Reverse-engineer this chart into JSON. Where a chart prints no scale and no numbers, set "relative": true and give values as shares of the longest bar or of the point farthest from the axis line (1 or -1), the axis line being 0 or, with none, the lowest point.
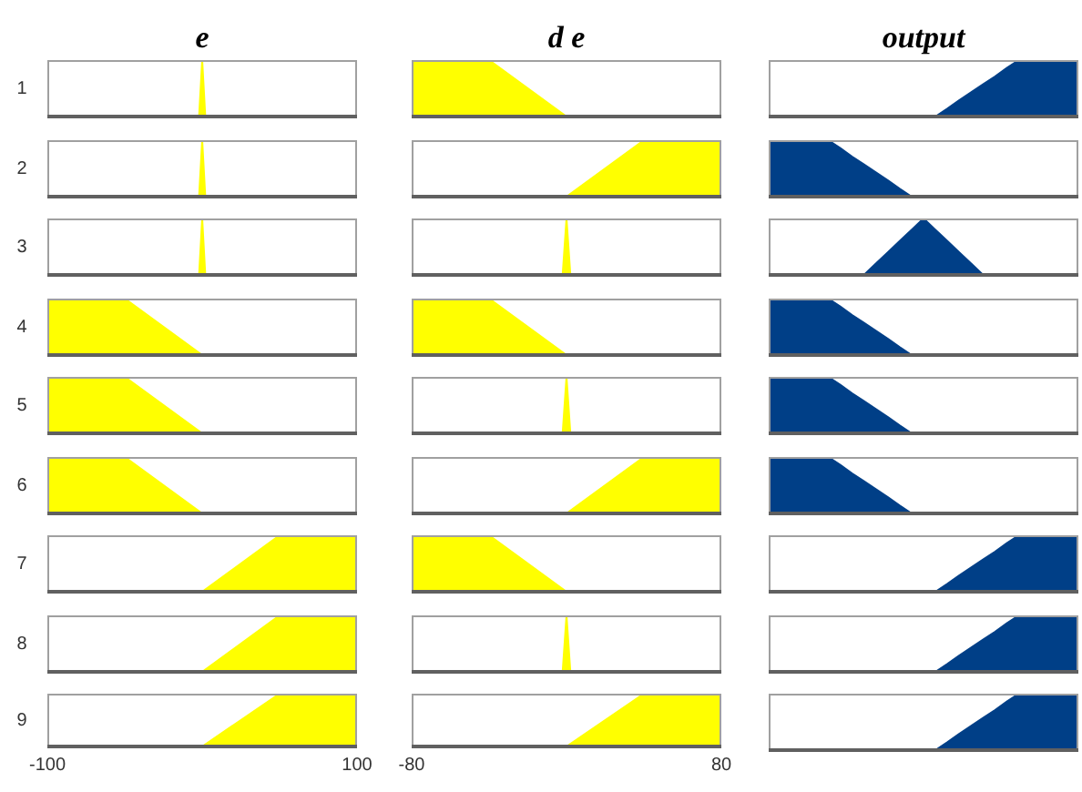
{
  "chart_data": [
    {
      "type": "area",
      "title": "e",
      "ylabel": "1",
      "x": [
        -100,
        -2,
        0,
        2,
        100
      ],
      "values": [
        0,
        0,
        1,
        0,
        0
      ],
      "color": "#ffff00",
      "relative": true,
      "xlim": [
        -100,
        100
      ],
      "tick_labels": false
    },
    {
      "type": "area",
      "title": "d e",
      "x": [
        -80,
        -40,
        0,
        80
      ],
      "values": [
        1,
        1,
        0,
        0
      ],
      "color": "#ffff00",
      "relative": true,
      "xlim": [
        -80,
        80
      ],
      "tick_labels": false
    },
    {
      "type": "area",
      "title": "output",
      "categories": [
        null,
        null,
        null,
        null,
        null,
        null,
        null,
        null,
        null,
        null,
        null,
        null,
        null,
        null,
        null,
        null,
        null,
        null,
        null,
        null,
        null,
        null,
        null,
        null,
        null,
        null,
        null
      ],
      "values": [
        0,
        0,
        0,
        0,
        0,
        0,
        0,
        0,
        0,
        0,
        0,
        0,
        0,
        0,
        0,
        0.14,
        0.29,
        0.43,
        0.57,
        0.71,
        0.86,
        1,
        1,
        1,
        1,
        1,
        1
      ],
      "color": "#003f87",
      "relative": true,
      "tick_labels": false
    },
    {
      "type": "area",
      "ylabel": "2",
      "x": [
        -100,
        -2,
        0,
        2,
        100
      ],
      "values": [
        0,
        0,
        1,
        0,
        0
      ],
      "color": "#ffff00",
      "relative": true,
      "xlim": [
        -100,
        100
      ],
      "tick_labels": false
    },
    {
      "type": "area",
      "x": [
        -80,
        0,
        40,
        80
      ],
      "values": [
        0,
        0,
        1,
        1
      ],
      "color": "#ffff00",
      "relative": true,
      "xlim": [
        -80,
        80
      ],
      "tick_labels": false
    },
    {
      "type": "area",
      "categories": [
        null,
        null,
        null,
        null,
        null,
        null,
        null,
        null,
        null,
        null,
        null,
        null,
        null,
        null,
        null,
        null,
        null,
        null,
        null,
        null,
        null,
        null,
        null,
        null,
        null,
        null,
        null
      ],
      "values": [
        1,
        1,
        1,
        1,
        1,
        1,
        0.86,
        0.71,
        0.57,
        0.43,
        0.29,
        0.14,
        0,
        0,
        0,
        0,
        0,
        0,
        0,
        0,
        0,
        0,
        0,
        0,
        0,
        0,
        0
      ],
      "color": "#003f87",
      "relative": true,
      "tick_labels": false
    },
    {
      "type": "area",
      "ylabel": "3",
      "x": [
        -100,
        -2,
        0,
        2,
        100
      ],
      "values": [
        0,
        0,
        1,
        0,
        0
      ],
      "color": "#ffff00",
      "relative": true,
      "xlim": [
        -100,
        100
      ],
      "tick_labels": false
    },
    {
      "type": "area",
      "x": [
        -80,
        -2,
        0,
        2,
        80
      ],
      "values": [
        0,
        0,
        1,
        0,
        0
      ],
      "color": "#ffff00",
      "relative": true,
      "xlim": [
        -80,
        80
      ],
      "tick_labels": false
    },
    {
      "type": "area",
      "categories": [
        null,
        null,
        null,
        null,
        null,
        null,
        null,
        null,
        null,
        null,
        null,
        null,
        null,
        null,
        null,
        null,
        null,
        null,
        null,
        null,
        null,
        null,
        null,
        null,
        null,
        null,
        null
      ],
      "values": [
        0,
        0,
        0,
        0,
        0,
        0,
        0,
        0,
        0,
        0.2,
        0.4,
        0.6,
        0.8,
        1,
        0.8,
        0.6,
        0.4,
        0.2,
        0,
        0,
        0,
        0,
        0,
        0,
        0,
        0,
        0
      ],
      "color": "#003f87",
      "relative": true,
      "tick_labels": false
    },
    {
      "type": "area",
      "ylabel": "4",
      "x": [
        -100,
        -50,
        0,
        100
      ],
      "values": [
        1,
        1,
        0,
        0
      ],
      "color": "#ffff00",
      "relative": true,
      "xlim": [
        -100,
        100
      ],
      "tick_labels": false
    },
    {
      "type": "area",
      "x": [
        -80,
        -40,
        0,
        80
      ],
      "values": [
        1,
        1,
        0,
        0
      ],
      "color": "#ffff00",
      "relative": true,
      "xlim": [
        -80,
        80
      ],
      "tick_labels": false
    },
    {
      "type": "area",
      "categories": [
        null,
        null,
        null,
        null,
        null,
        null,
        null,
        null,
        null,
        null,
        null,
        null,
        null,
        null,
        null,
        null,
        null,
        null,
        null,
        null,
        null,
        null,
        null,
        null,
        null,
        null,
        null
      ],
      "values": [
        1,
        1,
        1,
        1,
        1,
        1,
        0.86,
        0.71,
        0.57,
        0.43,
        0.29,
        0.14,
        0,
        0,
        0,
        0,
        0,
        0,
        0,
        0,
        0,
        0,
        0,
        0,
        0,
        0,
        0
      ],
      "color": "#003f87",
      "relative": true,
      "tick_labels": false
    },
    {
      "type": "area",
      "ylabel": "5",
      "x": [
        -100,
        -50,
        0,
        100
      ],
      "values": [
        1,
        1,
        0,
        0
      ],
      "color": "#ffff00",
      "relative": true,
      "xlim": [
        -100,
        100
      ],
      "tick_labels": false
    },
    {
      "type": "area",
      "x": [
        -80,
        -2,
        0,
        2,
        80
      ],
      "values": [
        0,
        0,
        1,
        0,
        0
      ],
      "color": "#ffff00",
      "relative": true,
      "xlim": [
        -80,
        80
      ],
      "tick_labels": false
    },
    {
      "type": "area",
      "categories": [
        null,
        null,
        null,
        null,
        null,
        null,
        null,
        null,
        null,
        null,
        null,
        null,
        null,
        null,
        null,
        null,
        null,
        null,
        null,
        null,
        null,
        null,
        null,
        null,
        null,
        null,
        null
      ],
      "values": [
        1,
        1,
        1,
        1,
        1,
        1,
        0.86,
        0.71,
        0.57,
        0.43,
        0.29,
        0.14,
        0,
        0,
        0,
        0,
        0,
        0,
        0,
        0,
        0,
        0,
        0,
        0,
        0,
        0,
        0
      ],
      "color": "#003f87",
      "relative": true,
      "tick_labels": false
    },
    {
      "type": "area",
      "ylabel": "6",
      "x": [
        -100,
        -50,
        0,
        100
      ],
      "values": [
        1,
        1,
        0,
        0
      ],
      "color": "#ffff00",
      "relative": true,
      "xlim": [
        -100,
        100
      ],
      "tick_labels": false
    },
    {
      "type": "area",
      "x": [
        -80,
        0,
        40,
        80
      ],
      "values": [
        0,
        0,
        1,
        1
      ],
      "color": "#ffff00",
      "relative": true,
      "xlim": [
        -80,
        80
      ],
      "tick_labels": false
    },
    {
      "type": "area",
      "categories": [
        null,
        null,
        null,
        null,
        null,
        null,
        null,
        null,
        null,
        null,
        null,
        null,
        null,
        null,
        null,
        null,
        null,
        null,
        null,
        null,
        null,
        null,
        null,
        null,
        null,
        null,
        null
      ],
      "values": [
        1,
        1,
        1,
        1,
        1,
        1,
        0.86,
        0.71,
        0.57,
        0.43,
        0.29,
        0.14,
        0,
        0,
        0,
        0,
        0,
        0,
        0,
        0,
        0,
        0,
        0,
        0,
        0,
        0,
        0
      ],
      "color": "#003f87",
      "relative": true,
      "tick_labels": false
    },
    {
      "type": "area",
      "ylabel": "7",
      "x": [
        -100,
        0,
        50,
        100
      ],
      "values": [
        0,
        0,
        1,
        1
      ],
      "color": "#ffff00",
      "relative": true,
      "xlim": [
        -100,
        100
      ],
      "tick_labels": false
    },
    {
      "type": "area",
      "x": [
        -80,
        -40,
        0,
        80
      ],
      "values": [
        1,
        1,
        0,
        0
      ],
      "color": "#ffff00",
      "relative": true,
      "xlim": [
        -80,
        80
      ],
      "tick_labels": false
    },
    {
      "type": "area",
      "categories": [
        null,
        null,
        null,
        null,
        null,
        null,
        null,
        null,
        null,
        null,
        null,
        null,
        null,
        null,
        null,
        null,
        null,
        null,
        null,
        null,
        null,
        null,
        null,
        null,
        null,
        null,
        null
      ],
      "values": [
        0,
        0,
        0,
        0,
        0,
        0,
        0,
        0,
        0,
        0,
        0,
        0,
        0,
        0,
        0,
        0.14,
        0.29,
        0.43,
        0.57,
        0.71,
        0.86,
        1,
        1,
        1,
        1,
        1,
        1
      ],
      "color": "#003f87",
      "relative": true,
      "tick_labels": false
    },
    {
      "type": "area",
      "ylabel": "8",
      "x": [
        -100,
        0,
        50,
        100
      ],
      "values": [
        0,
        0,
        1,
        1
      ],
      "color": "#ffff00",
      "relative": true,
      "xlim": [
        -100,
        100
      ],
      "tick_labels": false
    },
    {
      "type": "area",
      "x": [
        -80,
        -2,
        0,
        2,
        80
      ],
      "values": [
        0,
        0,
        1,
        0,
        0
      ],
      "color": "#ffff00",
      "relative": true,
      "xlim": [
        -80,
        80
      ],
      "tick_labels": false
    },
    {
      "type": "area",
      "categories": [
        null,
        null,
        null,
        null,
        null,
        null,
        null,
        null,
        null,
        null,
        null,
        null,
        null,
        null,
        null,
        null,
        null,
        null,
        null,
        null,
        null,
        null,
        null,
        null,
        null,
        null,
        null
      ],
      "values": [
        0,
        0,
        0,
        0,
        0,
        0,
        0,
        0,
        0,
        0,
        0,
        0,
        0,
        0,
        0,
        0.14,
        0.29,
        0.43,
        0.57,
        0.71,
        0.86,
        1,
        1,
        1,
        1,
        1,
        1
      ],
      "color": "#003f87",
      "relative": true,
      "tick_labels": false
    },
    {
      "type": "area",
      "ylabel": "9",
      "x": [
        -100,
        0,
        50,
        100
      ],
      "values": [
        0,
        0,
        1,
        1
      ],
      "color": "#ffff00",
      "relative": true,
      "xlim": [
        -100,
        100
      ],
      "xticks": [
        -100,
        100
      ],
      "tick_labels": "x"
    },
    {
      "type": "area",
      "x": [
        -80,
        0,
        40,
        80
      ],
      "values": [
        0,
        0,
        1,
        1
      ],
      "color": "#ffff00",
      "relative": true,
      "xlim": [
        -80,
        80
      ],
      "xticks": [
        -80,
        80
      ],
      "tick_labels": "x"
    },
    {
      "type": "area",
      "categories": [
        null,
        null,
        null,
        null,
        null,
        null,
        null,
        null,
        null,
        null,
        null,
        null,
        null,
        null,
        null,
        null,
        null,
        null,
        null,
        null,
        null,
        null,
        null,
        null,
        null,
        null,
        null
      ],
      "values": [
        0,
        0,
        0,
        0,
        0,
        0,
        0,
        0,
        0,
        0,
        0,
        0,
        0,
        0,
        0,
        0.14,
        0.29,
        0.43,
        0.57,
        0.71,
        0.86,
        1,
        1,
        1,
        1,
        1,
        1
      ],
      "color": "#003f87",
      "relative": true,
      "tick_labels": false
    }
  ]
}
